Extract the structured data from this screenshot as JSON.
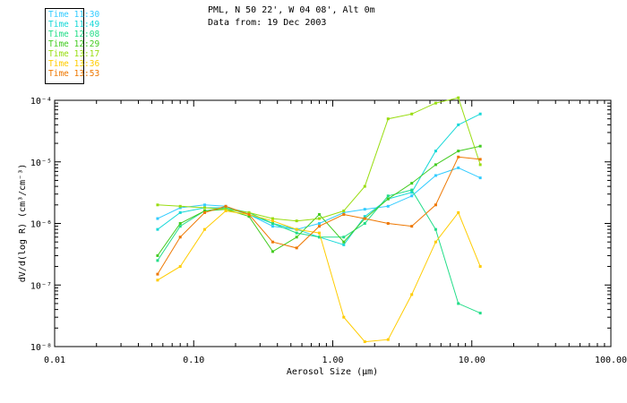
{
  "header": {
    "title": "PML, N 50 22', W 04 08', Alt 0m",
    "subtitle": "Data from: 19 Dec 2003"
  },
  "chart_data": {
    "type": "line",
    "title": "PML, N 50 22', W 04 08', Alt 0m",
    "subtitle": "Data from: 19 Dec 2003",
    "xlabel": "Aerosol Size (µm)",
    "ylabel": "dV/d(log R) (cm³/cm⁻³)",
    "x_scale": "log",
    "y_scale": "log",
    "xlim": [
      0.01,
      100.0
    ],
    "ylim": [
      1e-08,
      0.0001
    ],
    "x_ticks": [
      "0.01",
      "0.10",
      "1.00",
      "10.00",
      "100.00"
    ],
    "y_ticks": [
      "10⁻⁸",
      "10⁻⁷",
      "10⁻⁶",
      "10⁻⁵",
      "10⁻⁴"
    ],
    "legend_position": "top-left",
    "grid": false,
    "x": [
      0.055,
      0.08,
      0.12,
      0.17,
      0.25,
      0.37,
      0.55,
      0.8,
      1.2,
      1.7,
      2.5,
      3.7,
      5.5,
      8.0,
      11.5
    ],
    "series": [
      {
        "name": "Time 11:30",
        "color": "#33ccff",
        "values": [
          1.2e-06,
          1.8e-06,
          2e-06,
          1.9e-06,
          1.4e-06,
          9e-07,
          8e-07,
          1e-06,
          1.5e-06,
          1.7e-06,
          1.9e-06,
          2.8e-06,
          6e-06,
          8e-06,
          5.5e-06
        ]
      },
      {
        "name": "Time 11:49",
        "color": "#19d8d8",
        "values": [
          8e-07,
          1.5e-06,
          1.8e-06,
          1.8e-06,
          1.4e-06,
          1e-06,
          8e-07,
          6e-07,
          4.5e-07,
          1.3e-06,
          2.5e-06,
          3.2e-06,
          1.5e-05,
          4e-05,
          6e-05
        ]
      },
      {
        "name": "Time 12:08",
        "color": "#22dd88",
        "values": [
          2.5e-07,
          9e-07,
          1.6e-06,
          1.8e-06,
          1.5e-06,
          1e-06,
          7e-07,
          6e-07,
          6e-07,
          1e-06,
          2.8e-06,
          3.5e-06,
          8e-07,
          5e-08,
          3.5e-08
        ]
      },
      {
        "name": "Time 12:29",
        "color": "#44cc22",
        "values": [
          3e-07,
          1e-06,
          1.6e-06,
          1.7e-06,
          1.3e-06,
          3.5e-07,
          6e-07,
          1.4e-06,
          5e-07,
          1.2e-06,
          2.5e-06,
          4.5e-06,
          9e-06,
          1.5e-05,
          1.8e-05
        ]
      },
      {
        "name": "Time 13:17",
        "color": "#99dd11",
        "values": [
          2e-06,
          1.9e-06,
          1.8e-06,
          1.7e-06,
          1.5e-06,
          1.2e-06,
          1.1e-06,
          1.2e-06,
          1.6e-06,
          4e-06,
          5e-05,
          6e-05,
          9e-05,
          0.00011,
          9e-06
        ]
      },
      {
        "name": "Time 13:36",
        "color": "#ffcc00",
        "values": [
          1.2e-07,
          2e-07,
          8e-07,
          1.6e-06,
          1.4e-06,
          1.1e-06,
          8e-07,
          7e-07,
          3e-08,
          1.2e-08,
          1.3e-08,
          7e-08,
          5e-07,
          1.5e-06,
          2e-07
        ]
      },
      {
        "name": "Time 13:53",
        "color": "#ee7700",
        "values": [
          1.5e-07,
          6e-07,
          1.5e-06,
          1.9e-06,
          1.4e-06,
          5e-07,
          4e-07,
          9e-07,
          1.4e-06,
          1.2e-06,
          1e-06,
          9e-07,
          2e-06,
          1.2e-05,
          1.1e-05
        ]
      }
    ]
  }
}
